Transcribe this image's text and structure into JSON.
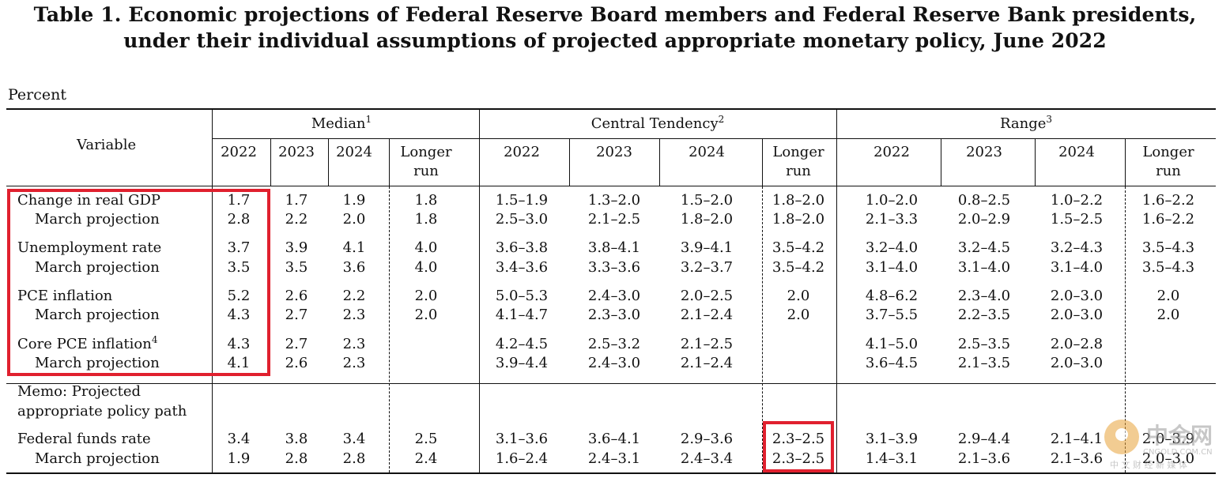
{
  "title": {
    "line1": "Table 1.  Economic projections of Federal Reserve Board members and Federal Reserve Bank presidents,",
    "line2": "under their individual assumptions of projected appropriate monetary policy, June 2022"
  },
  "unit": "Percent",
  "header": {
    "variable": "Variable",
    "groups": [
      {
        "label": "Median",
        "note": "1"
      },
      {
        "label": "Central Tendency",
        "note": "2"
      },
      {
        "label": "Range",
        "note": "3"
      }
    ],
    "years": [
      "2022",
      "2023",
      "2024"
    ],
    "longer": [
      "Longer",
      "run"
    ]
  },
  "rows": [
    {
      "label": "Change in real GDP",
      "indent": false,
      "cells": [
        "1.7",
        "1.7",
        "1.9",
        "1.8",
        "1.5–1.9",
        "1.3–2.0",
        "1.5–2.0",
        "1.8–2.0",
        "1.0–2.0",
        "0.8–2.5",
        "1.0–2.2",
        "1.6–2.2"
      ]
    },
    {
      "label": "March projection",
      "indent": true,
      "cells": [
        "2.8",
        "2.2",
        "2.0",
        "1.8",
        "2.5–3.0",
        "2.1–2.5",
        "1.8–2.0",
        "1.8–2.0",
        "2.1–3.3",
        "2.0–2.9",
        "1.5–2.5",
        "1.6–2.2"
      ]
    },
    {
      "label": "Unemployment rate",
      "indent": false,
      "cells": [
        "3.7",
        "3.9",
        "4.1",
        "4.0",
        "3.6–3.8",
        "3.8–4.1",
        "3.9–4.1",
        "3.5–4.2",
        "3.2–4.0",
        "3.2–4.5",
        "3.2–4.3",
        "3.5–4.3"
      ]
    },
    {
      "label": "March projection",
      "indent": true,
      "cells": [
        "3.5",
        "3.5",
        "3.6",
        "4.0",
        "3.4–3.6",
        "3.3–3.6",
        "3.2–3.7",
        "3.5–4.2",
        "3.1–4.0",
        "3.1–4.0",
        "3.1–4.0",
        "3.5–4.3"
      ]
    },
    {
      "label": "PCE inflation",
      "indent": false,
      "cells": [
        "5.2",
        "2.6",
        "2.2",
        "2.0",
        "5.0–5.3",
        "2.4–3.0",
        "2.0–2.5",
        "2.0",
        "4.8–6.2",
        "2.3–4.0",
        "2.0–3.0",
        "2.0"
      ]
    },
    {
      "label": "March projection",
      "indent": true,
      "cells": [
        "4.3",
        "2.7",
        "2.3",
        "2.0",
        "4.1–4.7",
        "2.3–3.0",
        "2.1–2.4",
        "2.0",
        "3.7–5.5",
        "2.2–3.5",
        "2.0–3.0",
        "2.0"
      ]
    },
    {
      "label": "Core PCE inflation",
      "note": "4",
      "indent": false,
      "cells": [
        "4.3",
        "2.7",
        "2.3",
        "",
        "4.2–4.5",
        "2.5–3.2",
        "2.1–2.5",
        "",
        "4.1–5.0",
        "2.5–3.5",
        "2.0–2.8",
        ""
      ]
    },
    {
      "label": "March projection",
      "indent": true,
      "cells": [
        "4.1",
        "2.6",
        "2.3",
        "",
        "3.9–4.4",
        "2.4–3.0",
        "2.1–2.4",
        "",
        "3.6–4.5",
        "2.1–3.5",
        "2.0–3.0",
        ""
      ]
    }
  ],
  "memo": {
    "line1": "Memo: Projected",
    "line2": "appropriate policy path"
  },
  "memo_rows": [
    {
      "label": "Federal funds rate",
      "indent": false,
      "cells": [
        "3.4",
        "3.8",
        "3.4",
        "2.5",
        "3.1–3.6",
        "3.6–4.1",
        "2.9–3.6",
        "2.3–2.5",
        "3.1–3.9",
        "2.9–4.4",
        "2.1–4.1",
        "2.0–3.9"
      ]
    },
    {
      "label": "March projection",
      "indent": true,
      "cells": [
        "1.9",
        "2.8",
        "2.8",
        "2.4",
        "1.6–2.4",
        "2.4–3.1",
        "2.4–3.4",
        "2.3–2.5",
        "1.4–3.1",
        "2.1–3.6",
        "2.1–3.6",
        "2.0–3.0"
      ]
    }
  ],
  "watermark": {
    "brand": "中金网",
    "domain": "CNGOLD.COM.CN",
    "tagline": "中 文 财 经 新 媒 体"
  },
  "highlight_color": "#e0202e"
}
